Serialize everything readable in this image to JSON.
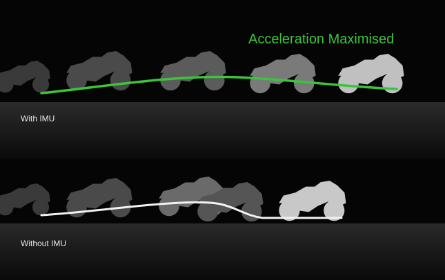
{
  "headline": "Acceleration Maximised",
  "rows": [
    {
      "label": "With IMU",
      "line_color": "#3cc43c",
      "bike_colors": [
        "#3a3a3a",
        "#4a4a4a",
        "#5b5b5b",
        "#7a7a7a",
        "#c0c0c0"
      ]
    },
    {
      "label": "Without IMU",
      "line_color": "#f2f2f2",
      "bike_colors": [
        "#3a3a3a",
        "#4a4a4a",
        "#6a6a6a",
        "#555555",
        "#c8c8c8"
      ]
    }
  ],
  "icon": "motorcycle-silhouette"
}
